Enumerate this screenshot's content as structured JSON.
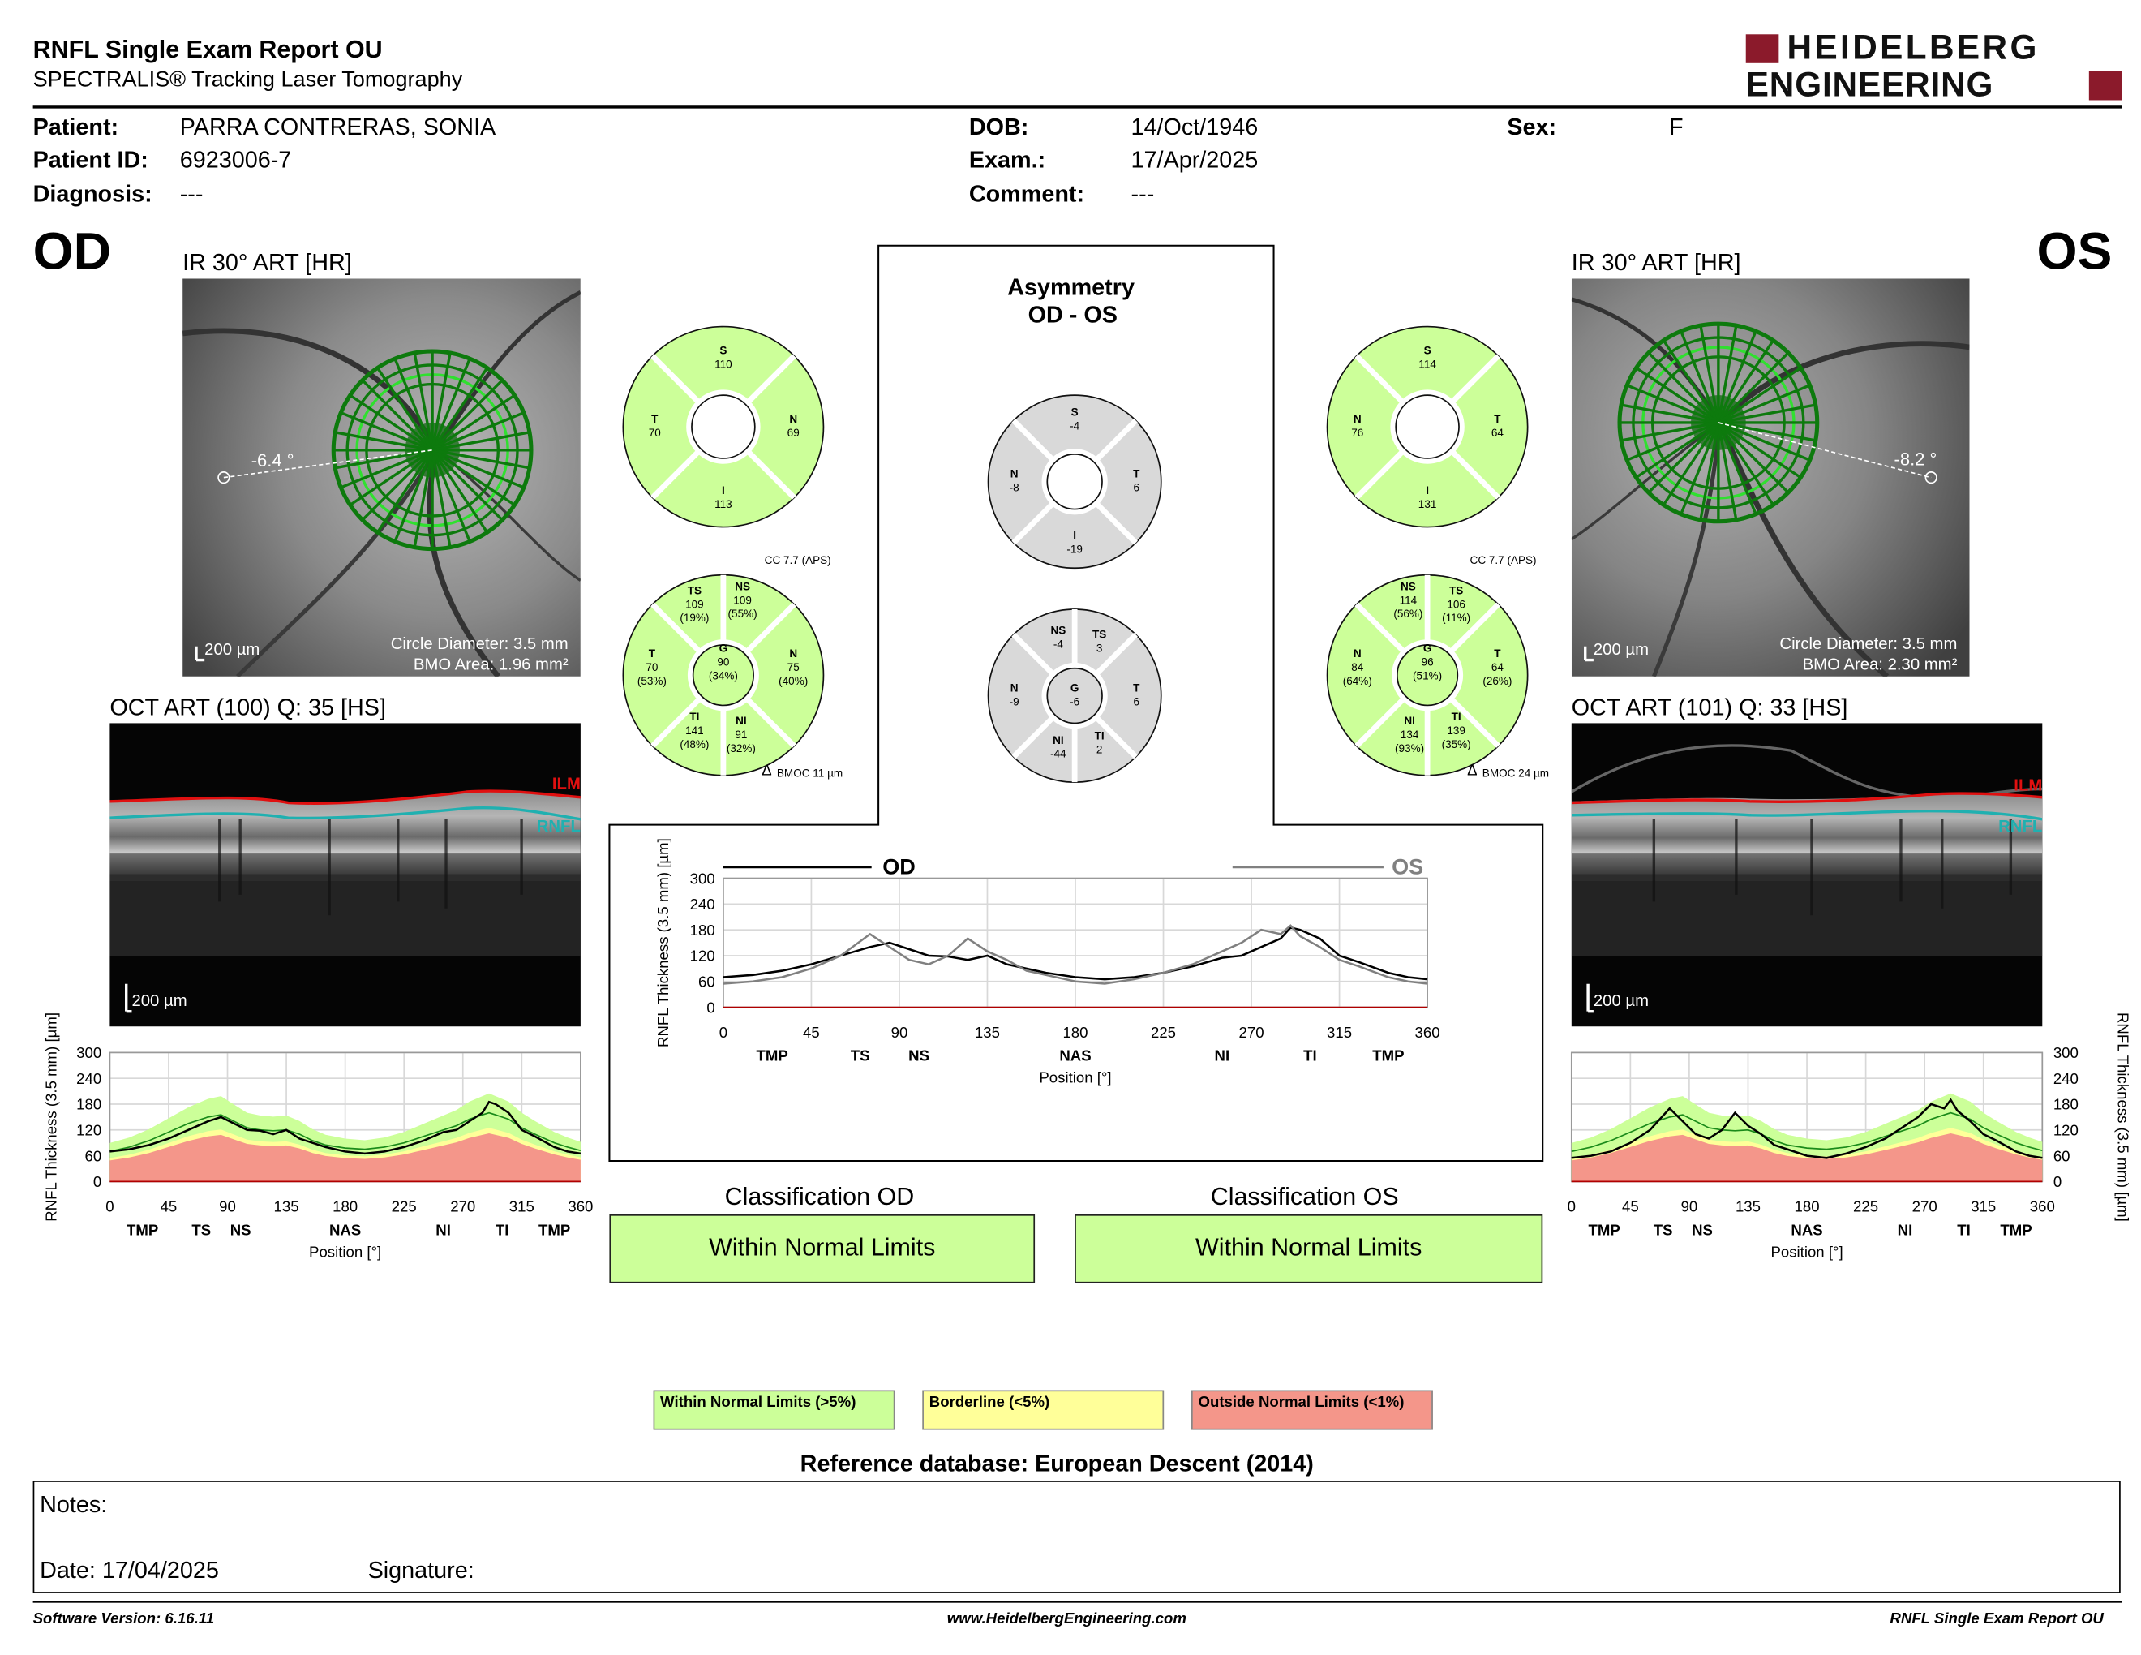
{
  "header": {
    "title": "RNFL Single Exam Report OU",
    "subtitle": "SPECTRALIS® Tracking Laser Tomography",
    "logo_line1": "HEIDELBERG",
    "logo_line2": "ENGINEERING"
  },
  "patient": {
    "patient_label": "Patient:",
    "patient_value": "PARRA CONTRERAS, SONIA",
    "id_label": "Patient ID:",
    "id_value": "6923006-7",
    "diagnosis_label": "Diagnosis:",
    "diagnosis_value": "---",
    "dob_label": "DOB:",
    "dob_value": "14/Oct/1946",
    "exam_label": "Exam.:",
    "exam_value": "17/Apr/2025",
    "comment_label": "Comment:",
    "comment_value": "---",
    "sex_label": "Sex:",
    "sex_value": "F"
  },
  "od": {
    "eye_label": "OD",
    "ir_caption": "IR 30° ART [HR]",
    "angle": "-6.4 °",
    "scale_ir": "200 µm",
    "circle_diameter": "Circle Diameter: 3.5 mm",
    "bmo_area": "BMO Area: 1.96 mm²",
    "oct_caption": "OCT ART (100) Q: 35 [HS]",
    "scale_oct": "200 µm",
    "ilm": "ILM",
    "rnfl": "RNFL",
    "cc": "CC 7.7 (APS)",
    "bmoc": "BMOC 11 µm",
    "delta": "Δ",
    "quad": {
      "s_label": "S",
      "s": "110",
      "t_label": "T",
      "t": "70",
      "n_label": "N",
      "n": "69",
      "i_label": "I",
      "i": "113"
    },
    "sect": {
      "ts_label": "TS",
      "ts": "109",
      "ts_pct": "(19%)",
      "ns_label": "NS",
      "ns": "109",
      "ns_pct": "(55%)",
      "t_label": "T",
      "t": "70",
      "t_pct": "(53%)",
      "g_label": "G",
      "g": "90",
      "g_pct": "(34%)",
      "n_label": "N",
      "n": "75",
      "n_pct": "(40%)",
      "ti_label": "TI",
      "ti": "141",
      "ti_pct": "(48%)",
      "ni_label": "NI",
      "ni": "91",
      "ni_pct": "(32%)"
    },
    "classification_title": "Classification OD",
    "classification": "Within Normal Limits"
  },
  "os": {
    "eye_label": "OS",
    "ir_caption": "IR 30° ART [HR]",
    "angle": "-8.2 °",
    "scale_ir": "200 µm",
    "circle_diameter": "Circle Diameter: 3.5 mm",
    "bmo_area": "BMO Area: 2.30 mm²",
    "oct_caption": "OCT ART (101) Q: 33 [HS]",
    "scale_oct": "200 µm",
    "ilm": "ILM",
    "rnfl": "RNFL",
    "cc": "CC 7.7 (APS)",
    "bmoc": "BMOC 24 µm",
    "delta": "Δ",
    "quad": {
      "s_label": "S",
      "s": "114",
      "n_label": "N",
      "n": "76",
      "t_label": "T",
      "t": "64",
      "i_label": "I",
      "i": "131"
    },
    "sect": {
      "ns_label": "NS",
      "ns": "114",
      "ns_pct": "(56%)",
      "ts_label": "TS",
      "ts": "106",
      "ts_pct": "(11%)",
      "n_label": "N",
      "n": "84",
      "n_pct": "(64%)",
      "g_label": "G",
      "g": "96",
      "g_pct": "(51%)",
      "t_label": "T",
      "t": "64",
      "t_pct": "(26%)",
      "ni_label": "NI",
      "ni": "134",
      "ni_pct": "(93%)",
      "ti_label": "TI",
      "ti": "139",
      "ti_pct": "(35%)"
    },
    "classification_title": "Classification OS",
    "classification": "Within Normal Limits"
  },
  "asymmetry": {
    "title1": "Asymmetry",
    "title2": "OD - OS",
    "quad": {
      "s_label": "S",
      "s": "-4",
      "n_label": "N",
      "n": "-8",
      "t_label": "T",
      "t": "6",
      "i_label": "I",
      "i": "-19"
    },
    "sect": {
      "ns_label": "NS",
      "ns": "-4",
      "ts_label": "TS",
      "ts": "3",
      "n_label": "N",
      "n": "-9",
      "g_label": "G",
      "g": "-6",
      "t_label": "T",
      "t": "6",
      "ni_label": "NI",
      "ni": "-44",
      "ti_label": "TI",
      "ti": "2"
    }
  },
  "chart_data": [
    {
      "type": "line",
      "id": "od-profile",
      "ylabel": "RNFL Thickness (3.5 mm) [µm]",
      "xlabel": "Position [°]",
      "ylim": [
        0,
        300
      ],
      "xlim": [
        0,
        360
      ],
      "yticks": [
        "300",
        "240",
        "180",
        "120",
        "60",
        "0"
      ],
      "xticks": [
        "0",
        "45",
        "90",
        "135",
        "180",
        "225",
        "270",
        "315",
        "360"
      ],
      "sectors": [
        "TMP",
        "TS",
        "NS",
        "NAS",
        "NI",
        "TI",
        "TMP"
      ],
      "x": [
        0,
        15,
        30,
        45,
        60,
        75,
        85,
        95,
        105,
        115,
        125,
        135,
        145,
        155,
        165,
        180,
        195,
        210,
        225,
        240,
        255,
        265,
        275,
        285,
        290,
        295,
        305,
        315,
        325,
        340,
        350,
        360
      ],
      "series": [
        {
          "name": "thickness",
          "values": [
            70,
            75,
            85,
            100,
            120,
            140,
            150,
            135,
            120,
            118,
            110,
            120,
            100,
            90,
            80,
            70,
            65,
            70,
            80,
            95,
            115,
            120,
            140,
            160,
            185,
            180,
            160,
            120,
            105,
            80,
            70,
            65
          ]
        },
        {
          "name": "normal_mean",
          "values": [
            70,
            80,
            95,
            115,
            135,
            150,
            155,
            140,
            125,
            120,
            118,
            120,
            110,
            95,
            85,
            78,
            75,
            80,
            90,
            105,
            120,
            130,
            145,
            155,
            160,
            155,
            145,
            125,
            110,
            90,
            80,
            72
          ]
        }
      ]
    },
    {
      "type": "line",
      "id": "os-profile",
      "ylabel": "RNFL Thickness (3.5 mm) [µm]",
      "xlabel": "Position [°]",
      "ylim": [
        0,
        300
      ],
      "xlim": [
        0,
        360
      ],
      "yticks": [
        "300",
        "240",
        "180",
        "120",
        "60",
        "0"
      ],
      "xticks": [
        "0",
        "45",
        "90",
        "135",
        "180",
        "225",
        "270",
        "315",
        "360"
      ],
      "sectors": [
        "TMP",
        "TS",
        "NS",
        "NAS",
        "NI",
        "TI",
        "TMP"
      ],
      "x": [
        0,
        15,
        30,
        45,
        60,
        75,
        85,
        95,
        105,
        115,
        125,
        135,
        145,
        155,
        165,
        180,
        195,
        210,
        225,
        240,
        255,
        265,
        275,
        285,
        290,
        295,
        305,
        315,
        325,
        340,
        350,
        360
      ],
      "series": [
        {
          "name": "thickness",
          "values": [
            55,
            60,
            70,
            90,
            120,
            170,
            140,
            110,
            100,
            120,
            160,
            130,
            110,
            85,
            75,
            60,
            55,
            65,
            80,
            100,
            130,
            150,
            180,
            170,
            190,
            165,
            140,
            110,
            95,
            70,
            60,
            55
          ]
        },
        {
          "name": "normal_mean",
          "values": [
            70,
            80,
            95,
            115,
            135,
            150,
            155,
            140,
            125,
            120,
            118,
            120,
            110,
            95,
            85,
            78,
            75,
            80,
            90,
            105,
            120,
            130,
            145,
            155,
            160,
            155,
            145,
            125,
            110,
            90,
            80,
            72
          ]
        }
      ]
    },
    {
      "type": "line",
      "id": "comparison",
      "ylabel": "RNFL Thickness (3.5 mm) [µm]",
      "xlabel": "Position [°]",
      "ylim": [
        0,
        300
      ],
      "xlim": [
        0,
        360
      ],
      "yticks": [
        "300",
        "240",
        "180",
        "120",
        "60",
        "0"
      ],
      "xticks": [
        "0",
        "45",
        "90",
        "135",
        "180",
        "225",
        "270",
        "315",
        "360"
      ],
      "sectors": [
        "TMP",
        "TS",
        "NS",
        "NAS",
        "NI",
        "TI",
        "TMP"
      ],
      "x": [
        0,
        15,
        30,
        45,
        60,
        75,
        85,
        95,
        105,
        115,
        125,
        135,
        145,
        155,
        165,
        180,
        195,
        210,
        225,
        240,
        255,
        265,
        275,
        285,
        290,
        295,
        305,
        315,
        325,
        340,
        350,
        360
      ],
      "series": [
        {
          "name": "OD",
          "values": [
            70,
            75,
            85,
            100,
            120,
            140,
            150,
            135,
            120,
            118,
            110,
            120,
            100,
            90,
            80,
            70,
            65,
            70,
            80,
            95,
            115,
            120,
            140,
            160,
            185,
            180,
            160,
            120,
            105,
            80,
            70,
            65
          ]
        },
        {
          "name": "OS",
          "values": [
            55,
            60,
            70,
            90,
            120,
            170,
            140,
            110,
            100,
            120,
            160,
            130,
            110,
            85,
            75,
            60,
            55,
            65,
            80,
            100,
            130,
            150,
            180,
            170,
            190,
            165,
            140,
            110,
            95,
            70,
            60,
            55
          ]
        }
      ]
    }
  ],
  "colors": {
    "green": "#ccff99",
    "gray": "#d9d9d9",
    "borderline": "#ffff99",
    "outside": "#f4968a",
    "od_line": "#000000",
    "os_line": "#808080"
  },
  "legend": {
    "wnl": "Within Normal Limits (>5%)",
    "bl": "Borderline (<5%)",
    "onl": "Outside Normal Limits (<1%)"
  },
  "reference_db": "Reference database: European Descent (2014)",
  "notes": {
    "notes_label": "Notes:",
    "date_label": "Date: 17/04/2025",
    "signature_label": "Signature:"
  },
  "footer": {
    "software": "Software Version: 6.16.11",
    "website": "www.HeidelbergEngineering.com",
    "report": "RNFL Single Exam Report OU"
  }
}
